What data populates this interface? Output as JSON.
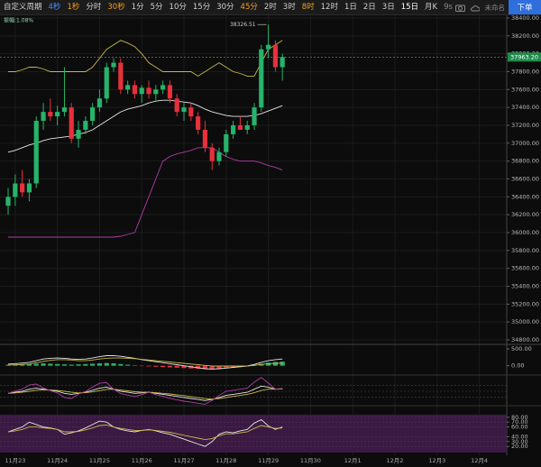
{
  "toolbar": {
    "periods": [
      {
        "text": "自定义周期",
        "color": "#d0d0d0"
      },
      {
        "text": "4秒",
        "color": "#4d8ef7"
      },
      {
        "text": "1秒",
        "color": "#f0a020"
      },
      {
        "text": "分时",
        "color": "#d0d0d0"
      },
      {
        "text": "30秒",
        "color": "#f0a020"
      },
      {
        "text": "1分",
        "color": "#d0d0d0"
      },
      {
        "text": "5分",
        "color": "#d0d0d0"
      },
      {
        "text": "10分",
        "color": "#d0d0d0"
      },
      {
        "text": "15分",
        "color": "#d0d0d0"
      },
      {
        "text": "30分",
        "color": "#d0d0d0"
      },
      {
        "text": "45分",
        "color": "#f0a020"
      },
      {
        "text": "2时",
        "color": "#d0d0d0"
      },
      {
        "text": "3时",
        "color": "#d0d0d0"
      },
      {
        "text": "8时",
        "color": "#f0a020"
      },
      {
        "text": "12时",
        "color": "#d0d0d0"
      },
      {
        "text": "1日",
        "color": "#d0d0d0"
      },
      {
        "text": "2日",
        "color": "#d0d0d0"
      },
      {
        "text": "3日",
        "color": "#d0d0d0"
      },
      {
        "text": "15日",
        "color": "#ffffff"
      },
      {
        "text": "月K",
        "color": "#d0d0d0"
      },
      {
        "text": "9s",
        "color": "#888888"
      }
    ],
    "layout_name": "未命名",
    "order_button": "下单"
  },
  "chart_data": {
    "type": "candlestick",
    "amplitude": "振幅:1.08%",
    "x": [
      -0.167,
      0,
      0.167,
      0.333,
      0.5,
      0.667,
      0.833,
      1,
      1.167,
      1.333,
      1.5,
      1.667,
      1.833,
      2,
      2.167,
      2.333,
      2.5,
      2.667,
      2.833,
      3,
      3.167,
      3.333,
      3.5,
      3.667,
      3.833,
      4,
      4.167,
      4.333,
      4.5,
      4.667,
      4.833,
      5,
      5.167,
      5.333,
      5.5,
      5.667,
      5.833,
      6,
      6.167,
      6.333
    ],
    "open": [
      36300,
      36400,
      36550,
      36450,
      36550,
      37250,
      37350,
      37300,
      37350,
      37400,
      37050,
      37150,
      37250,
      37400,
      37500,
      37850,
      37900,
      37600,
      37650,
      37550,
      37620,
      37550,
      37600,
      37650,
      37500,
      37350,
      37400,
      37300,
      37150,
      36950,
      36800,
      36900,
      37100,
      37200,
      37150,
      37200,
      37400,
      38050,
      38100,
      37850
    ],
    "high": [
      36500,
      36650,
      36700,
      36600,
      37300,
      37450,
      37500,
      37420,
      37850,
      37450,
      37250,
      37300,
      37450,
      37600,
      37900,
      37950,
      37950,
      37700,
      37700,
      37650,
      37700,
      37650,
      37700,
      37700,
      37550,
      37450,
      37450,
      37350,
      37250,
      37000,
      36950,
      37150,
      37250,
      37300,
      37250,
      37450,
      38100,
      38326.51,
      38150,
      38000
    ],
    "low": [
      36200,
      36300,
      36400,
      36350,
      36500,
      37150,
      37250,
      37200,
      37300,
      37000,
      36950,
      37100,
      37200,
      37350,
      37450,
      37800,
      37550,
      37550,
      37500,
      37450,
      37500,
      37480,
      37550,
      37450,
      37300,
      37250,
      37250,
      37100,
      36900,
      36700,
      36750,
      36850,
      37050,
      37150,
      37100,
      37150,
      37350,
      37950,
      37800,
      37700
    ],
    "close": [
      36400,
      36550,
      36450,
      36550,
      37250,
      37350,
      37300,
      37350,
      37400,
      37050,
      37150,
      37250,
      37400,
      37500,
      37850,
      37900,
      37600,
      37650,
      37550,
      37620,
      37550,
      37600,
      37650,
      37500,
      37350,
      37400,
      37300,
      37150,
      36950,
      36800,
      36900,
      37100,
      37200,
      37150,
      37200,
      37400,
      38050,
      38100,
      37850,
      37963.2
    ],
    "up_color": "#27b36a",
    "down_color": "#e6303c",
    "max_marker": 37,
    "current_price": {
      "value": 37963.2,
      "label": "37963.20"
    },
    "bands": [
      {
        "color": "#c9b54a",
        "values": [
          37800,
          37800,
          37820,
          37850,
          37850,
          37830,
          37800,
          37800,
          37800,
          37800,
          37800,
          37800,
          37850,
          37950,
          38050,
          38100,
          38150,
          38120,
          38080,
          38000,
          37900,
          37850,
          37800,
          37800,
          37800,
          37800,
          37800,
          37750,
          37800,
          37850,
          37900,
          37850,
          37800,
          37780,
          37750,
          37750,
          37900,
          38050,
          38100,
          38150
        ]
      },
      {
        "color": "#e6e6e6",
        "values": [
          36900,
          36920,
          36950,
          36980,
          37000,
          37030,
          37050,
          37060,
          37070,
          37080,
          37100,
          37120,
          37150,
          37200,
          37250,
          37300,
          37350,
          37380,
          37400,
          37420,
          37450,
          37470,
          37480,
          37480,
          37470,
          37460,
          37450,
          37420,
          37380,
          37350,
          37330,
          37310,
          37300,
          37300,
          37300,
          37310,
          37330,
          37360,
          37390,
          37420
        ]
      },
      {
        "color": "#b03ca8",
        "values": [
          35950,
          35950,
          35950,
          35950,
          35950,
          35950,
          35950,
          35950,
          35950,
          35950,
          35950,
          35950,
          35950,
          35950,
          35950,
          35950,
          35960,
          35980,
          36000,
          36200,
          36400,
          36600,
          36800,
          36850,
          36880,
          36900,
          36920,
          36950,
          36950,
          36950,
          36900,
          36850,
          36820,
          36800,
          36800,
          36800,
          36780,
          36750,
          36730,
          36700
        ]
      }
    ],
    "xlim": [
      -0.36,
      11.65
    ],
    "xticks": [
      {
        "value": 0,
        "label": "11月23"
      },
      {
        "value": 1,
        "label": "11月24"
      },
      {
        "value": 2,
        "label": "11月25"
      },
      {
        "value": 3,
        "label": "11月26"
      },
      {
        "value": 4,
        "label": "11月27"
      },
      {
        "value": 5,
        "label": "11月28"
      },
      {
        "value": 6,
        "label": "11月29"
      },
      {
        "value": 7,
        "label": "11月30"
      },
      {
        "value": 8,
        "label": "12月1"
      },
      {
        "value": 9,
        "label": "12月2"
      },
      {
        "value": 10,
        "label": "12月3"
      },
      {
        "value": 11,
        "label": "12月4"
      }
    ],
    "ylim": [
      34750,
      38430
    ],
    "yticks": [
      {
        "value": 38400,
        "label": "38400.00"
      },
      {
        "value": 38200,
        "label": "38200.00"
      },
      {
        "value": 38000,
        "label": "38000.00"
      },
      {
        "value": 37800,
        "label": "37800.00"
      },
      {
        "value": 37600,
        "label": "37600.00"
      },
      {
        "value": 37400,
        "label": "37400.00"
      },
      {
        "value": 37200,
        "label": "37200.00"
      },
      {
        "value": 37000,
        "label": "37000.00"
      },
      {
        "value": 36800,
        "label": "36800.00"
      },
      {
        "value": 36600,
        "label": "36600.00"
      },
      {
        "value": 36400,
        "label": "36400.00"
      },
      {
        "value": 36200,
        "label": "36200.00"
      },
      {
        "value": 36000,
        "label": "36000.00"
      },
      {
        "value": 35800,
        "label": "35800.00"
      },
      {
        "value": 35600,
        "label": "35600.00"
      },
      {
        "value": 35400,
        "label": "35400.00"
      },
      {
        "value": 35200,
        "label": "35200.00"
      },
      {
        "value": 35000,
        "label": "35000.00"
      },
      {
        "value": 34800,
        "label": "34800.00"
      }
    ],
    "grid": true,
    "indicators": [
      {
        "type": "macd",
        "ylim": [
          -170,
          580
        ],
        "yticks": [
          {
            "value": 500,
            "label": "500.00"
          },
          {
            "value": 0,
            "label": "0.00"
          }
        ],
        "histogram": [
          30,
          35,
          40,
          50,
          60,
          70,
          60,
          50,
          40,
          30,
          40,
          50,
          60,
          70,
          80,
          70,
          50,
          30,
          10,
          -10,
          -20,
          -30,
          -40,
          -50,
          -60,
          -70,
          -80,
          -90,
          -100,
          -90,
          -80,
          -60,
          -40,
          -20,
          0,
          30,
          60,
          90,
          110,
          120
        ],
        "lines": [
          {
            "color": "#e6e6e6",
            "values": [
              50,
              60,
              80,
              100,
              150,
              200,
              220,
              230,
              220,
              200,
              190,
              200,
              230,
              270,
              300,
              300,
              280,
              250,
              220,
              180,
              150,
              120,
              90,
              60,
              30,
              0,
              -30,
              -60,
              -90,
              -100,
              -90,
              -70,
              -50,
              -30,
              -10,
              40,
              100,
              150,
              180,
              200
            ]
          },
          {
            "color": "#c9b54a",
            "values": [
              20,
              25,
              40,
              50,
              90,
              130,
              160,
              180,
              180,
              170,
              150,
              150,
              170,
              200,
              220,
              230,
              230,
              220,
              210,
              190,
              170,
              150,
              130,
              110,
              90,
              70,
              50,
              30,
              10,
              -10,
              -10,
              -10,
              -10,
              -10,
              -10,
              10,
              40,
              60,
              70,
              80
            ]
          }
        ]
      },
      {
        "type": "line",
        "ylim": [
          -10,
          130
        ],
        "lines": [
          {
            "color": "#e6e6e6",
            "values": [
              50,
              55,
              60,
              70,
              75,
              70,
              65,
              60,
              50,
              45,
              50,
              55,
              65,
              75,
              80,
              70,
              60,
              55,
              50,
              52,
              55,
              50,
              45,
              40,
              35,
              30,
              25,
              20,
              15,
              20,
              30,
              40,
              45,
              50,
              55,
              70,
              85,
              80,
              70,
              72
            ]
          },
          {
            "color": "#c9b54a",
            "values": [
              50,
              52,
              55,
              60,
              65,
              67,
              66,
              64,
              60,
              55,
              52,
              53,
              57,
              63,
              69,
              70,
              66,
              62,
              58,
              56,
              55,
              53,
              50,
              47,
              43,
              39,
              34,
              29,
              24,
              22,
              25,
              30,
              35,
              40,
              45,
              53,
              64,
              70,
              70,
              71
            ]
          },
          {
            "color": "#b03ca8",
            "values": [
              50,
              61,
              70,
              90,
              95,
              76,
              63,
              52,
              30,
              25,
              46,
              59,
              81,
              99,
              102,
              70,
              48,
              41,
              34,
              44,
              55,
              44,
              35,
              26,
              19,
              12,
              7,
              2,
              -3,
              16,
              40,
              60,
              65,
              70,
              75,
              104,
              127,
              100,
              70,
              74
            ]
          }
        ]
      },
      {
        "type": "line",
        "ylim": [
          0,
          100
        ],
        "band_color": "#3a1a42",
        "yticks": [
          {
            "value": 80,
            "label": "80.00"
          },
          {
            "value": 70,
            "label": "70.00"
          },
          {
            "value": 60,
            "label": "60.00"
          },
          {
            "value": 40,
            "label": "40.00"
          },
          {
            "value": 30,
            "label": "30.00"
          },
          {
            "value": 20,
            "label": "20.00"
          }
        ],
        "lines": [
          {
            "color": "#e6e6e6",
            "values": [
              50,
              55,
              60,
              70,
              65,
              60,
              58,
              55,
              45,
              48,
              52,
              58,
              65,
              72,
              70,
              60,
              55,
              52,
              50,
              53,
              55,
              52,
              48,
              45,
              40,
              35,
              30,
              25,
              20,
              30,
              45,
              50,
              48,
              52,
              55,
              68,
              75,
              62,
              55,
              60
            ]
          },
          {
            "color": "#c9b54a",
            "values": [
              50,
              52,
              55,
              60,
              60,
              58,
              57,
              55,
              50,
              50,
              51,
              54,
              58,
              63,
              64,
              60,
              57,
              55,
              53,
              53,
              54,
              53,
              51,
              49,
              46,
              43,
              40,
              37,
              34,
              36,
              42,
              46,
              46,
              48,
              50,
              57,
              63,
              60,
              57,
              58
            ]
          }
        ]
      }
    ]
  }
}
